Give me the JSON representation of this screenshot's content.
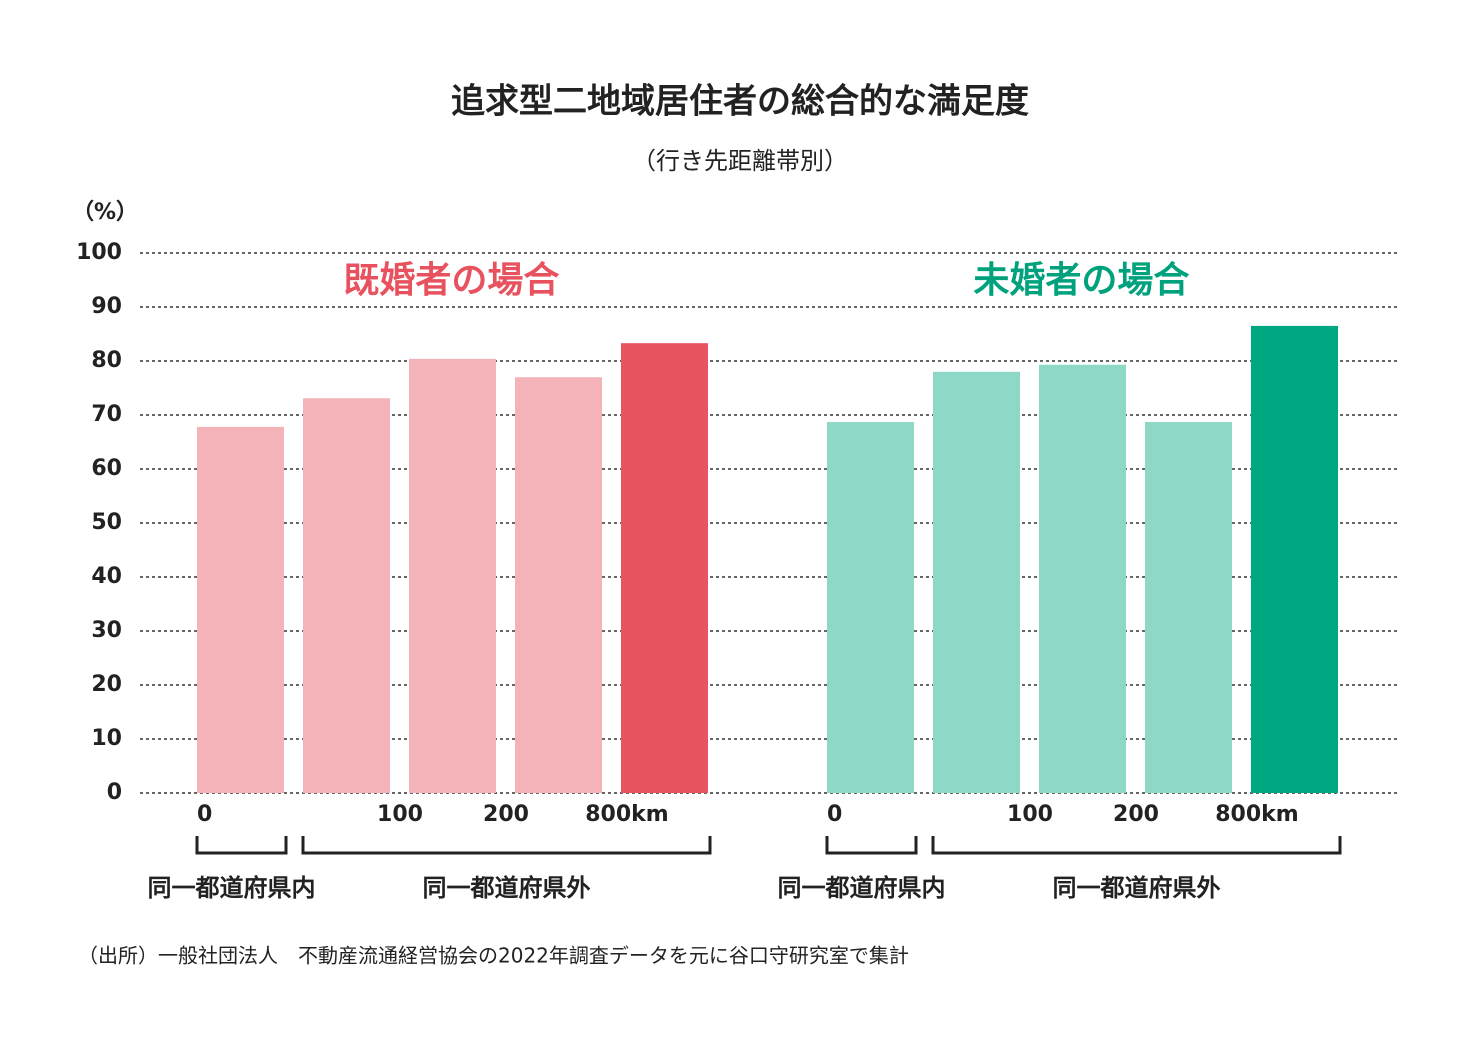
{
  "chart_data": {
    "type": "bar",
    "title": "追求型二地域居住者の総合的な満足度",
    "subtitle": "（行き先距離帯別）",
    "y_label": "（%）",
    "categories": [
      null,
      null,
      null,
      null,
      null
    ],
    "distance_labels": [
      "0",
      "100",
      "200",
      "800km"
    ],
    "series": [
      {
        "name": "既婚者の場合",
        "color": "#e8525f",
        "colors": [
          "#f4b3b8",
          "#f4b3b8",
          "#f4b3b8",
          "#f4b3b8",
          "#e85560"
        ],
        "values": [
          67.8,
          73.1,
          80.4,
          77,
          83.3
        ],
        "range_labels": [
          "同一都道府県内",
          "同一都道府県外"
        ]
      },
      {
        "name": "未婚者の場合",
        "color": "#00a27d",
        "colors": [
          "#8ed8c8",
          "#8ed8c8",
          "#8ed8c8",
          "#8ed8c8",
          "#00a882"
        ],
        "values": [
          68.7,
          78,
          79.3,
          68.7,
          86.5
        ],
        "range_labels": [
          "同一都道府県内",
          "同一都道府県外"
        ]
      }
    ],
    "ylim": [
      0,
      100
    ],
    "yticks": [
      0,
      10,
      20,
      30,
      40,
      50,
      60,
      70,
      80,
      90,
      100
    ],
    "grid": true,
    "source": "（出所）一般社団法人　不動産流通経営協会の2022年調査データを元に谷口守研究室で集計"
  }
}
